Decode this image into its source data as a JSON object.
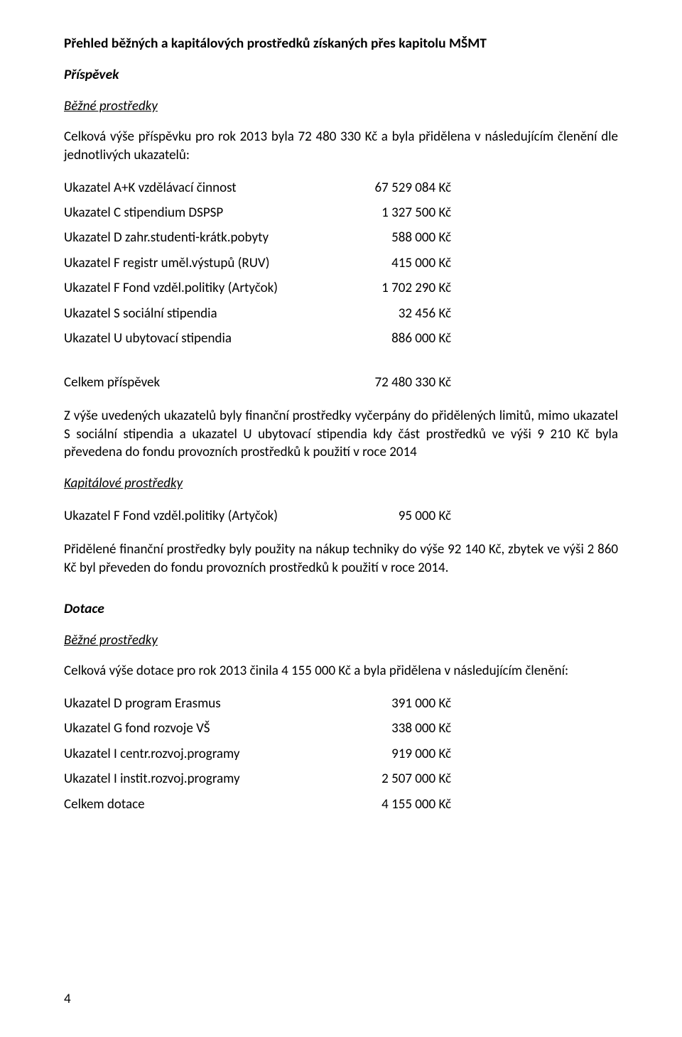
{
  "colors": {
    "text": "#000000",
    "bg": "#ffffff"
  },
  "heading": "Přehled běžných a kapitálových prostředků získaných přes kapitolu MŠMT",
  "section1": {
    "title": "Příspěvek",
    "subtitle": "Běžné prostředky",
    "intro": "Celková výše příspěvku pro rok 2013 byla 72 480 330 Kč a byla přidělena v následujícím členění dle jednotlivých ukazatelů:",
    "rows": [
      {
        "label": "Ukazatel A+K vzdělávací činnost",
        "value": "67 529 084 Kč"
      },
      {
        "label": "Ukazatel C stipendium DSPSP",
        "value": "1 327 500 Kč"
      },
      {
        "label": "Ukazatel D zahr.studenti-krátk.pobyty",
        "value": "588 000 Kč"
      },
      {
        "label": "Ukazatel F registr uměl.výstupů (RUV)",
        "value": "415 000 Kč"
      },
      {
        "label": "Ukazatel F Fond vzděl.politiky (Artyčok)",
        "value": "1 702 290 Kč"
      },
      {
        "label": "Ukazatel S sociální stipendia",
        "value": "32 456 Kč"
      },
      {
        "label": "Ukazatel U ubytovací stipendia",
        "value": "886 000 Kč"
      }
    ],
    "total": {
      "label": "Celkem příspěvek",
      "value": "72 480 330 Kč"
    },
    "note": "Z výše uvedených ukazatelů byly finanční prostředky vyčerpány do přidělených limitů, mimo ukazatel S sociální stipendia a ukazatel U ubytovací stipendia kdy část prostředků ve výši 9 210 Kč byla převedena do fondu provozních prostředků k použití v roce 2014",
    "capital_title": "Kapitálové prostředky",
    "capital_row": {
      "label": "Ukazatel F Fond vzděl.politiky (Artyčok)",
      "value": "95 000 Kč"
    },
    "capital_note": "Přidělené finanční prostředky byly použity na nákup techniky do výše 92 140 Kč, zbytek ve výši 2 860 Kč byl převeden do fondu provozních prostředků k použití v roce 2014."
  },
  "section2": {
    "title": "Dotace",
    "subtitle": "Běžné prostředky",
    "intro": "Celková výše dotace pro rok 2013 činila 4 155 000 Kč a byla přidělena v následujícím členění:",
    "rows": [
      {
        "label": "Ukazatel D program Erasmus",
        "value": "391 000 Kč"
      },
      {
        "label": "Ukazatel G fond rozvoje VŠ",
        "value": "338 000 Kč"
      },
      {
        "label": "Ukazatel I centr.rozvoj.programy",
        "value": "919 000 Kč"
      },
      {
        "label": "Ukazatel I instit.rozvoj.programy",
        "value": "2 507 000 Kč"
      },
      {
        "label": "Celkem dotace",
        "value": "4 155 000 Kč"
      }
    ]
  },
  "page_number": "4"
}
